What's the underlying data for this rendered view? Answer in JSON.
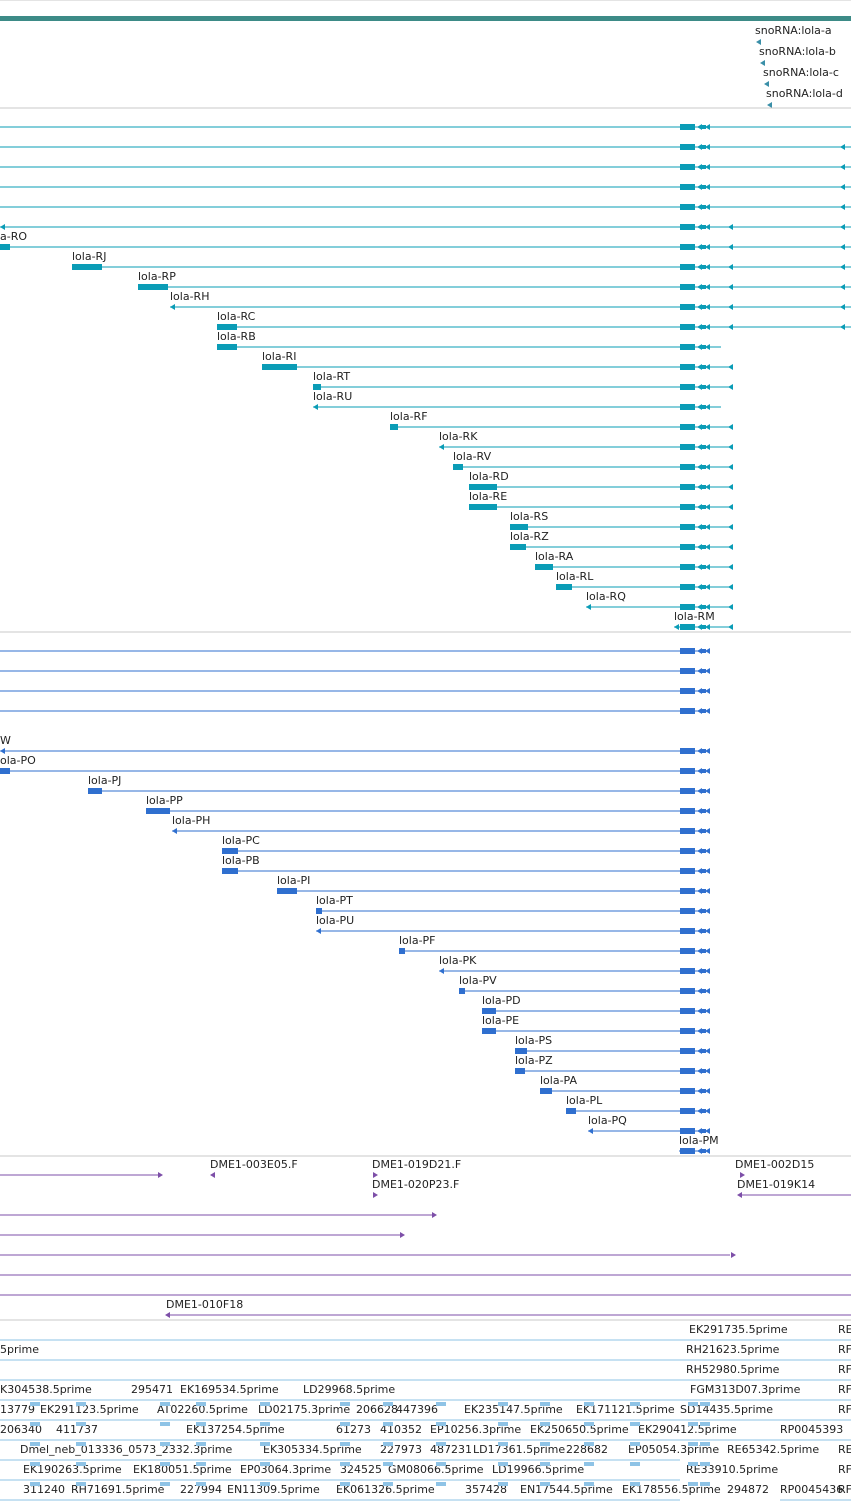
{
  "palette": {
    "top_bar": "#3d8b87",
    "snorna": "#3a8fa8",
    "rna": "#0a9cb6",
    "protein": "#2f6fcf",
    "clone": "#7d4fa8",
    "est": "#8ec3e6",
    "divider": "#c8c8c8"
  },
  "snorna_track": {
    "items": [
      {
        "label": "snoRNA:lola-a"
      },
      {
        "label": "snoRNA:lola-b"
      },
      {
        "label": "snoRNA:lola-c"
      },
      {
        "label": "snoRNA:lola-d"
      }
    ]
  },
  "transcripts_track": {
    "top_row_count": 5,
    "rows": [
      {
        "label": "",
        "right_extent": "long"
      },
      {
        "label": "a-RO",
        "right_extent": "long"
      },
      {
        "label": "lola-RJ",
        "right_extent": "long"
      },
      {
        "label": "lola-RP",
        "right_extent": "long"
      },
      {
        "label": "lola-RH",
        "right_extent": "long"
      },
      {
        "label": "lola-RC",
        "right_extent": "long"
      },
      {
        "label": "lola-RB",
        "right_extent": "short"
      },
      {
        "label": "lola-RI",
        "right_extent": "mid"
      },
      {
        "label": "lola-RT",
        "right_extent": "mid"
      },
      {
        "label": "lola-RU",
        "right_extent": "short"
      },
      {
        "label": "lola-RF",
        "right_extent": "mid"
      },
      {
        "label": "lola-RK",
        "right_extent": "mid"
      },
      {
        "label": "lola-RV",
        "right_extent": "mid"
      },
      {
        "label": "lola-RD",
        "right_extent": "mid"
      },
      {
        "label": "lola-RE",
        "right_extent": "mid"
      },
      {
        "label": "lola-RS",
        "right_extent": "mid"
      },
      {
        "label": "lola-RZ",
        "right_extent": "mid"
      },
      {
        "label": "lola-RA",
        "right_extent": "mid"
      },
      {
        "label": "lola-RL",
        "right_extent": "mid"
      },
      {
        "label": "lola-RQ",
        "right_extent": "mid"
      },
      {
        "label": "lola-RM",
        "right_extent": "mid"
      }
    ]
  },
  "proteins_track": {
    "top_row_count": 4,
    "rows": [
      {
        "label": "W"
      },
      {
        "label": "ola-PO"
      },
      {
        "label": "lola-PJ"
      },
      {
        "label": "lola-PP"
      },
      {
        "label": "lola-PH"
      },
      {
        "label": "lola-PC"
      },
      {
        "label": "lola-PB"
      },
      {
        "label": "lola-PI"
      },
      {
        "label": "lola-PT"
      },
      {
        "label": "lola-PU"
      },
      {
        "label": "lola-PF"
      },
      {
        "label": "lola-PK"
      },
      {
        "label": "lola-PV"
      },
      {
        "label": "lola-PD"
      },
      {
        "label": "lola-PE"
      },
      {
        "label": "lola-PS"
      },
      {
        "label": "lola-PZ"
      },
      {
        "label": "lola-PA"
      },
      {
        "label": "lola-PL"
      },
      {
        "label": "lola-PQ"
      },
      {
        "label": "lola-PM"
      }
    ]
  },
  "clones_track": {
    "labels": [
      {
        "text": "DME1-003E05.F"
      },
      {
        "text": "DME1-019D21.F"
      },
      {
        "text": "DME1-020P23.F"
      },
      {
        "text": "DME1-002D15"
      },
      {
        "text": "DME1-019K14"
      },
      {
        "text": "DME1-010F18"
      }
    ]
  },
  "est_track": {
    "labels": [
      {
        "text": "EK291735.5prime"
      },
      {
        "text": "RE"
      },
      {
        "text": "5prime"
      },
      {
        "text": "RH21623.5prime"
      },
      {
        "text": "RF"
      },
      {
        "text": "RH52980.5prime"
      },
      {
        "text": "RF"
      },
      {
        "text": "K304538.5prime"
      },
      {
        "text": "295471"
      },
      {
        "text": "EK169534.5prime"
      },
      {
        "text": "LD29968.5prime"
      },
      {
        "text": "FGM313D07.3prime"
      },
      {
        "text": "RF"
      },
      {
        "text": "13779"
      },
      {
        "text": "EK291123.5prime"
      },
      {
        "text": "AT02260.5prime"
      },
      {
        "text": "LD02175.3prime"
      },
      {
        "text": "206628"
      },
      {
        "text": "447396"
      },
      {
        "text": "EK235147.5prime"
      },
      {
        "text": "EK171121.5prime"
      },
      {
        "text": "SD14435.5prime"
      },
      {
        "text": "RF"
      },
      {
        "text": "206340"
      },
      {
        "text": "411737"
      },
      {
        "text": "EK137254.5prime"
      },
      {
        "text": "61273"
      },
      {
        "text": "410352"
      },
      {
        "text": "EP10256.3prime"
      },
      {
        "text": "EK250650.5prime"
      },
      {
        "text": "EK290412.5prime"
      },
      {
        "text": "RP0045393"
      },
      {
        "text": "Dmel_neb_013336_0573_2332.3prime"
      },
      {
        "text": "EK305334.5prime"
      },
      {
        "text": "227973"
      },
      {
        "text": "487231"
      },
      {
        "text": "LD17361.5prime"
      },
      {
        "text": "228682"
      },
      {
        "text": "EP05054.3prime"
      },
      {
        "text": "RE65342.5prime"
      },
      {
        "text": "RE"
      },
      {
        "text": "EK190263.5prime"
      },
      {
        "text": "EK180051.5prime"
      },
      {
        "text": "EP03064.3prime"
      },
      {
        "text": "324525"
      },
      {
        "text": "GM08066.5prime"
      },
      {
        "text": "LD19966.5prime"
      },
      {
        "text": "RE33910.5prime"
      },
      {
        "text": "RF"
      },
      {
        "text": "311240"
      },
      {
        "text": "RH71691.5prime"
      },
      {
        "text": "227994"
      },
      {
        "text": "EN11309.5prime"
      },
      {
        "text": "EK061326.5prime"
      },
      {
        "text": "357428"
      },
      {
        "text": "EN17544.5prime"
      },
      {
        "text": "EK178556.5prime"
      },
      {
        "text": "294872"
      },
      {
        "text": "RP0045436"
      },
      {
        "text": "RF"
      }
    ]
  }
}
